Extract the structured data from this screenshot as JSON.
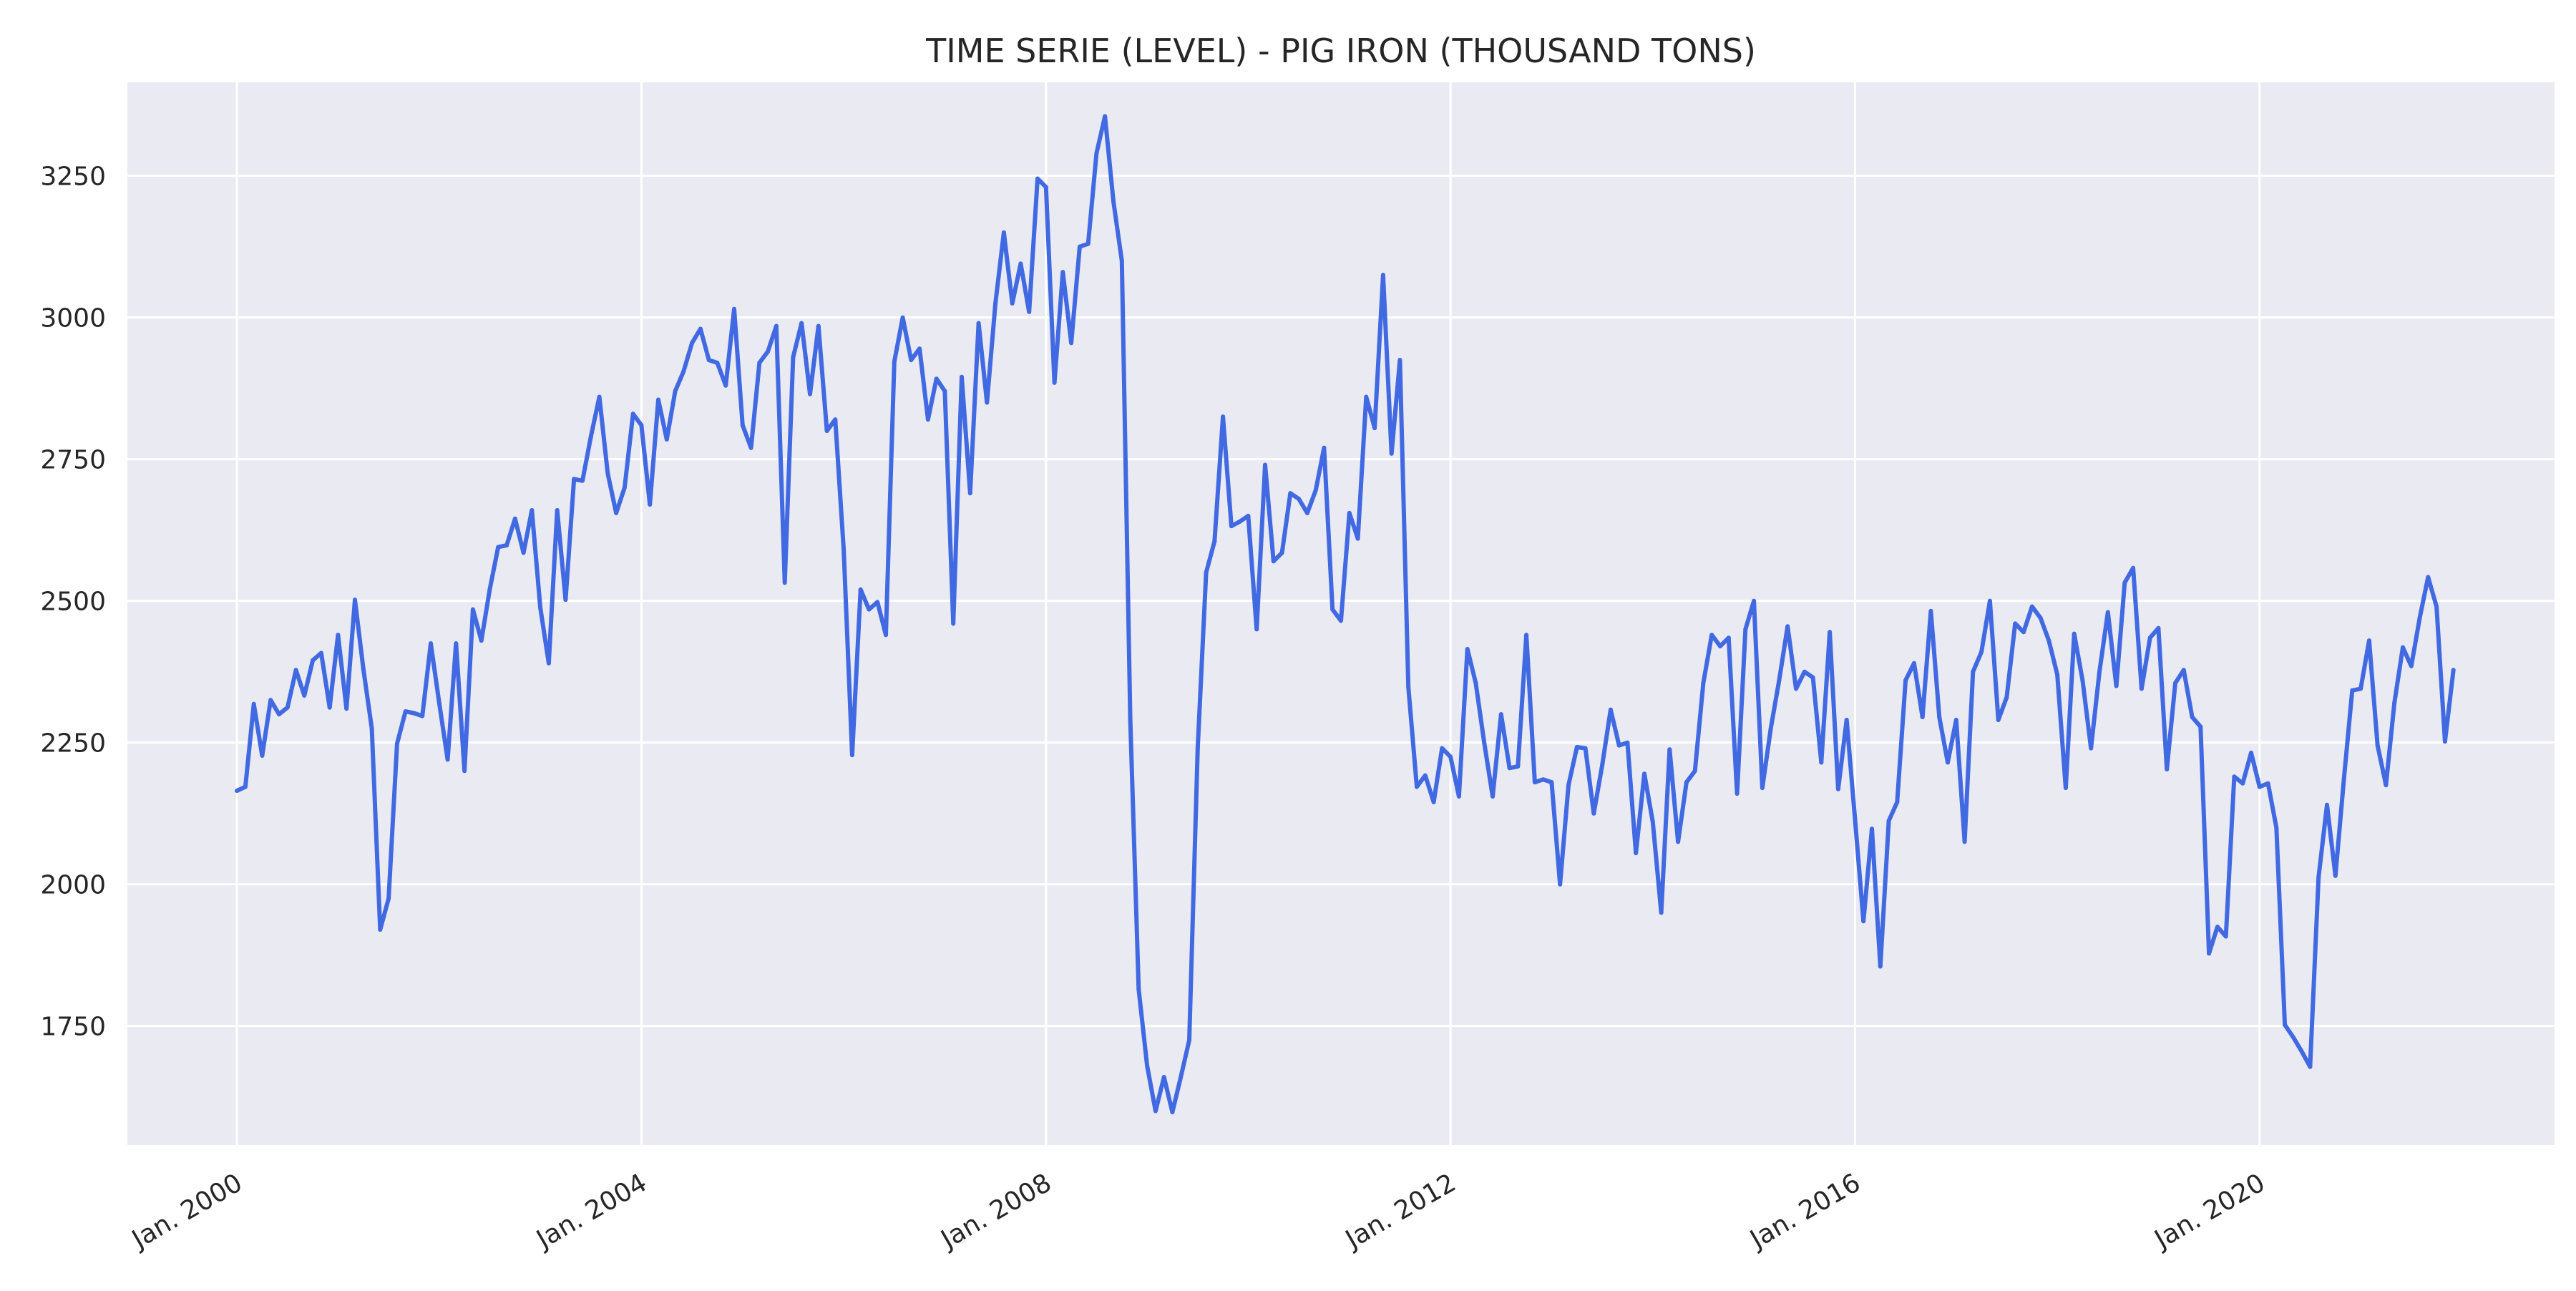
{
  "chart_data": {
    "type": "line",
    "title": "TIME SERIE (LEVEL) - PIG IRON (THOUSAND TONS)",
    "xlabel": "",
    "ylabel": "",
    "x_start": "2000-01",
    "x_end": "2021-11",
    "x_frequency": "monthly",
    "xlim": [
      "1998-12",
      "2022-12"
    ],
    "ylim": [
      1540,
      3415
    ],
    "x_ticks": [
      {
        "date": "2000-01",
        "label": "Jan. 2000"
      },
      {
        "date": "2004-01",
        "label": "Jan. 2004"
      },
      {
        "date": "2008-01",
        "label": "Jan. 2008"
      },
      {
        "date": "2012-01",
        "label": "Jan. 2012"
      },
      {
        "date": "2016-01",
        "label": "Jan. 2016"
      },
      {
        "date": "2020-01",
        "label": "Jan. 2020"
      }
    ],
    "y_ticks": [
      1750,
      2000,
      2250,
      2500,
      2750,
      3000,
      3250
    ],
    "grid": true,
    "legend": "none",
    "colors": {
      "line": "#4169e1",
      "plot_background": "#eaeaf2",
      "grid": "#ffffff"
    },
    "series": [
      {
        "values": [
          2165,
          2172,
          2318,
          2227,
          2325,
          2300,
          2312,
          2378,
          2333,
          2395,
          2408,
          2312,
          2440,
          2310,
          2502,
          2380,
          2275,
          1920,
          1975,
          2248,
          2305,
          2302,
          2297,
          2425,
          2320,
          2220,
          2425,
          2200,
          2485,
          2430,
          2520,
          2595,
          2598,
          2645,
          2585,
          2660,
          2488,
          2390,
          2660,
          2502,
          2715,
          2712,
          2790,
          2860,
          2725,
          2655,
          2700,
          2830,
          2810,
          2670,
          2855,
          2785,
          2870,
          2905,
          2955,
          2980,
          2925,
          2920,
          2880,
          3015,
          2810,
          2770,
          2920,
          2940,
          2985,
          2532,
          2930,
          2990,
          2865,
          2985,
          2800,
          2820,
          2590,
          2228,
          2520,
          2485,
          2498,
          2440,
          2922,
          3000,
          2925,
          2945,
          2820,
          2892,
          2870,
          2460,
          2895,
          2690,
          2990,
          2850,
          3025,
          3150,
          3025,
          3095,
          3010,
          3245,
          3230,
          2885,
          3080,
          2955,
          3125,
          3130,
          3290,
          3355,
          3205,
          3100,
          2290,
          1815,
          1680,
          1600,
          1660,
          1598,
          1660,
          1725,
          2240,
          2550,
          2605,
          2825,
          2632,
          2640,
          2650,
          2450,
          2740,
          2570,
          2585,
          2690,
          2680,
          2655,
          2695,
          2770,
          2485,
          2465,
          2655,
          2610,
          2860,
          2805,
          3075,
          2760,
          2925,
          2348,
          2172,
          2192,
          2145,
          2240,
          2225,
          2155,
          2415,
          2355,
          2250,
          2155,
          2300,
          2205,
          2208,
          2440,
          2180,
          2185,
          2180,
          2000,
          2175,
          2242,
          2240,
          2125,
          2210,
          2308,
          2245,
          2250,
          2055,
          2195,
          2110,
          1950,
          2238,
          2075,
          2180,
          2200,
          2355,
          2440,
          2420,
          2435,
          2160,
          2450,
          2500,
          2170,
          2275,
          2360,
          2455,
          2345,
          2375,
          2365,
          2215,
          2445,
          2168,
          2290,
          2115,
          1935,
          2098,
          1855,
          2112,
          2145,
          2360,
          2390,
          2295,
          2482,
          2295,
          2215,
          2290,
          2075,
          2375,
          2410,
          2500,
          2290,
          2330,
          2460,
          2445,
          2490,
          2470,
          2430,
          2370,
          2170,
          2442,
          2360,
          2240,
          2375,
          2480,
          2350,
          2532,
          2558,
          2345,
          2435,
          2452,
          2203,
          2355,
          2378,
          2295,
          2278,
          1878,
          1925,
          1908,
          2190,
          2178,
          2232,
          2172,
          2178,
          2100,
          1752,
          1730,
          1705,
          1678,
          2012,
          2140,
          2015,
          2185,
          2342,
          2345,
          2430,
          2245,
          2175,
          2320,
          2418,
          2385,
          2470,
          2542,
          2490,
          2252,
          2378
        ]
      }
    ]
  }
}
